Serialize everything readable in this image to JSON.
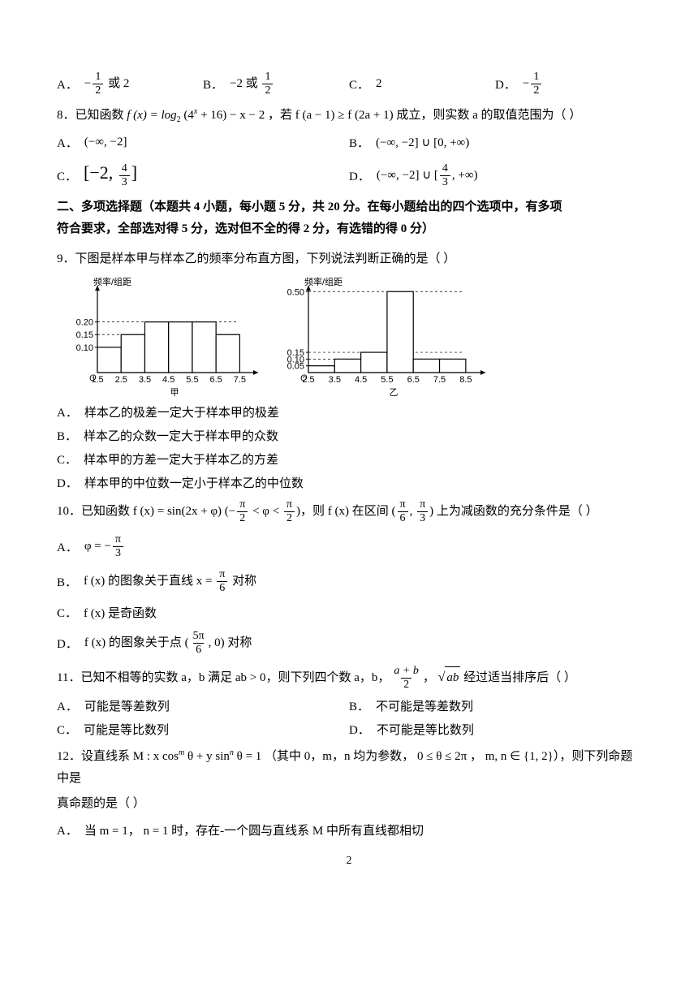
{
  "q7": {
    "optA_label": "A．",
    "optA_prefix": "−",
    "optA_num": "1",
    "optA_den": "2",
    "optA_suffix": " 或 2",
    "optB_label": "B．",
    "optB_prefix": "−2 或 ",
    "optB_num": "1",
    "optB_den": "2",
    "optC_label": "C．",
    "optC_text": "2",
    "optD_label": "D．",
    "optD_prefix": "−",
    "optD_num": "1",
    "optD_den": "2"
  },
  "q8": {
    "stem_a": "8．已知函数 ",
    "stem_b": "f (x) = log",
    "stem_sub": "2",
    "stem_c": " (4",
    "stem_supx": "x",
    "stem_d": " + 16) − x − 2 ，若 f (a − 1) ≥ f (2a + 1) 成立，则实数 a 的取值范围为（       ）",
    "optA_label": "A．",
    "optA_text": "(−∞, −2]",
    "optB_label": "B．",
    "optB_text": "(−∞, −2] ∪ [0, +∞)",
    "optC_label": "C．",
    "optC_pre": "[−2, ",
    "optC_num": "4",
    "optC_den": "3",
    "optC_post": "]",
    "optD_label": "D．",
    "optD_pre": "(−∞, −2] ∪ [",
    "optD_num": "4",
    "optD_den": "3",
    "optD_post": ", +∞)"
  },
  "section2": {
    "line1": "二、多项选择题（本题共 4 小题，每小题 5 分，共 20 分。在每小题给出的四个选项中，有多项",
    "line2": "符合要求，全部选对得 5 分，选对但不全的得 2 分，有选错的得 0 分）"
  },
  "q9": {
    "stem": "9．下图是样本甲与样本乙的频率分布直方图，下列说法判断正确的是（       ）",
    "ylabel": "频率/组距",
    "name1": "甲",
    "name2": "乙",
    "chart1": {
      "yticks": [
        "0.10",
        "0.15",
        "0.20"
      ],
      "yvals": [
        0.1,
        0.15,
        0.2
      ],
      "xticks": [
        "1.5",
        "2.5",
        "3.5",
        "4.5",
        "5.5",
        "6.5",
        "7.5"
      ],
      "bars": [
        0.1,
        0.15,
        0.2,
        0.2,
        0.2,
        0.15
      ],
      "ylim": 0.32,
      "bar_color": "#ffffff",
      "stroke": "#000000"
    },
    "chart2": {
      "yticks": [
        "0.05",
        "0.10",
        "0.15",
        "0.50"
      ],
      "yvals": [
        0.05,
        0.1,
        0.15,
        0.5
      ],
      "xticks": [
        "2.5",
        "3.5",
        "4.5",
        "5.5",
        "6.5",
        "7.5",
        "8.5"
      ],
      "bars": [
        0.05,
        0.1,
        0.15,
        0.5,
        0.1,
        0.1
      ],
      "ylim": 0.6,
      "bar_color": "#ffffff",
      "stroke": "#000000"
    },
    "optA_label": "A．",
    "optA": "样本乙的极差一定大于样本甲的极差",
    "optB_label": "B．",
    "optB": "样本乙的众数一定大于样本甲的众数",
    "optC_label": "C．",
    "optC": "样本甲的方差一定大于样本乙的方差",
    "optD_label": "D．",
    "optD": "样本甲的中位数一定小于样本乙的中位数"
  },
  "q10": {
    "stem_a": "10．已知函数 f (x) = sin(2x + φ) (−",
    "stem_num1": "π",
    "stem_den1": "2",
    "stem_b": " < φ < ",
    "stem_num2": "π",
    "stem_den2": "2",
    "stem_c": ")，则 f (x) 在区间 (",
    "stem_num3": "π",
    "stem_den3": "6",
    "stem_comma": ", ",
    "stem_num4": "π",
    "stem_den4": "3",
    "stem_d": ") 上为减函数的充分条件是（       ）",
    "optA_label": "A．",
    "optA_pre": "φ = −",
    "optA_num": "π",
    "optA_den": "3",
    "optB_label": "B．",
    "optB_pre": "f (x) 的图象关于直线 x = ",
    "optB_num": "π",
    "optB_den": "6",
    "optB_post": " 对称",
    "optC_label": "C．",
    "optC": "f (x) 是奇函数",
    "optD_label": "D．",
    "optD_pre": "f (x) 的图象关于点 (",
    "optD_num": "5π",
    "optD_den": "6",
    "optD_post": ", 0) 对称"
  },
  "q11": {
    "stem_a": "11．已知不相等的实数 a，b 满足 ab > 0，则下列四个数 a，b，",
    "stem_num": "a + b",
    "stem_den": "2",
    "stem_b": "，  ",
    "stem_sqrt": "ab",
    "stem_c": " 经过适当排序后（       ）",
    "optA_label": "A．",
    "optA": "可能是等差数列",
    "optB_label": "B．",
    "optB": "不可能是等差数列",
    "optC_label": "C．",
    "optC": "可能是等比数列",
    "optD_label": "D．",
    "optD": "不可能是等比数列"
  },
  "q12": {
    "stem_a": "12．设直线系 M : x cos",
    "stem_sup1": "m",
    "stem_b": " θ + y sin",
    "stem_sup2": "n",
    "stem_c": " θ = 1 （其中 0，m，n 均为参数， 0 ≤ θ ≤ 2π ， m, n ∈ {1, 2}），则下列命题中是",
    "stem_d": "真命题的是（       ）",
    "optA_label": "A．",
    "optA": "当 m = 1， n = 1 时，存在-一个圆与直线系 M 中所有直线都相切"
  },
  "pgnum": "2"
}
